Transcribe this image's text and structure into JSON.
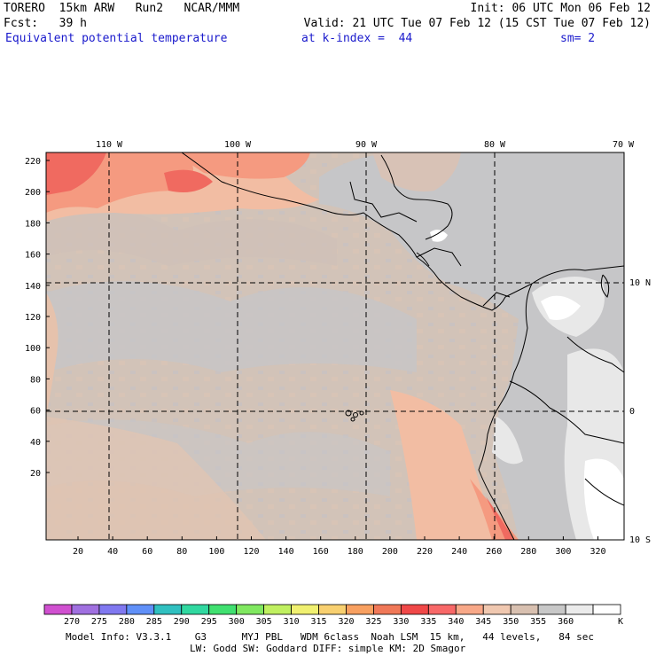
{
  "header": {
    "model": "TORERO",
    "resolution": "15km ARW",
    "run": "Run2",
    "center": "NCAR/MMM",
    "init": "Init: 06 UTC Mon 06 Feb 12",
    "fcst_label": "Fcst:",
    "fcst_value": "39 h",
    "valid": "Valid: 21 UTC Tue 07 Feb 12 (15 CST Tue 07 Feb 12)",
    "field": "Equivalent potential temperature",
    "level": "at k-index =",
    "k_index": "44",
    "smoothing": "sm= 2"
  },
  "map": {
    "lon_labels": [
      "110 W",
      "100 W",
      "90 W",
      "80 W",
      "70 W"
    ],
    "lat_labels": [
      "10 N",
      "0",
      "10 S"
    ],
    "y_ticks": [
      "220",
      "200",
      "180",
      "160",
      "140",
      "120",
      "100",
      "80",
      "60",
      "40",
      "20"
    ],
    "x_ticks": [
      "20",
      "40",
      "60",
      "80",
      "100",
      "120",
      "140",
      "160",
      "180",
      "200",
      "220",
      "240",
      "260",
      "280",
      "300",
      "320"
    ]
  },
  "colorbar": {
    "unit": "K",
    "labels": [
      "270",
      "275",
      "280",
      "285",
      "290",
      "295",
      "300",
      "305",
      "310",
      "315",
      "320",
      "325",
      "330",
      "335",
      "340",
      "345",
      "350",
      "355",
      "360"
    ],
    "colors": [
      "#d050d0",
      "#a070e0",
      "#8078f0",
      "#6090f8",
      "#30c0c0",
      "#30d8a0",
      "#40e070",
      "#80e860",
      "#c0f060",
      "#f0f070",
      "#f8d070",
      "#f8a060",
      "#f07858",
      "#f04848",
      "#f86868",
      "#f8a888",
      "#f0c8b0",
      "#d8c0b0",
      "#c8c8c8",
      "#ebebeb",
      "#ffffff"
    ]
  },
  "footer": {
    "line1": "Model Info: V3.3.1    G3      MYJ PBL   WDM 6class  Noah LSM  15 km,   44 levels,   84 sec",
    "line2": "LW: Godd SW: Goddard DIFF: simple KM: 2D Smagor"
  },
  "colors": {
    "ocean_base": "#d2c3b8",
    "warm": "#f2bda3",
    "warmer": "#f59a80",
    "hot": "#f06a60",
    "cool_gray": "#c6c6c8",
    "light": "#e8e8e8",
    "white": "#ffffff"
  }
}
